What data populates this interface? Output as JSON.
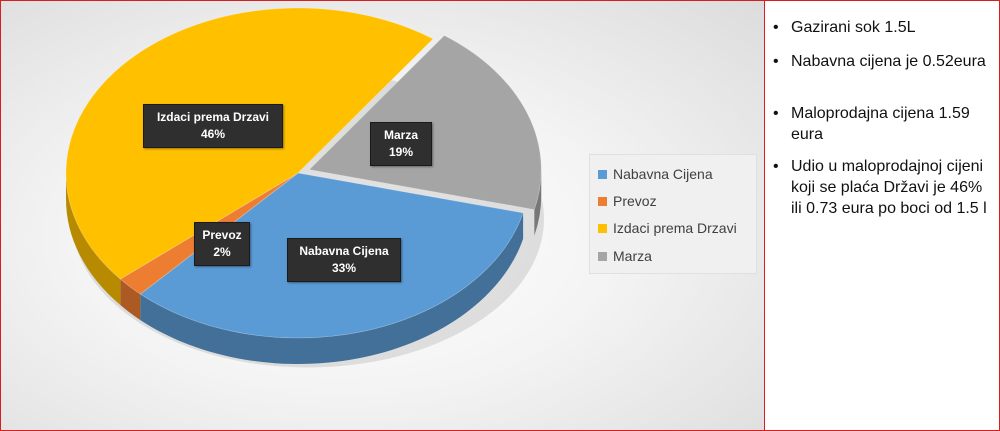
{
  "chart_data": {
    "type": "pie",
    "title": "",
    "slices": [
      {
        "name": "Nabavna Cijena",
        "value": 33,
        "label": "Nabavna Cijena",
        "pct": "33%",
        "color": "#5b9bd5"
      },
      {
        "name": "Prevoz",
        "value": 2,
        "label": "Prevoz",
        "pct": "2%",
        "color": "#ed7d31"
      },
      {
        "name": "Izdaci prema Drzavi",
        "value": 46,
        "label": "Izdaci  prema Drzavi",
        "pct": "46%",
        "color": "#ffc000"
      },
      {
        "name": "Marza",
        "value": 19,
        "label": "Marza",
        "pct": "19%",
        "color": "#a5a5a5"
      }
    ],
    "legend_position": "right",
    "style": "3d-exploded-pie"
  },
  "legend": {
    "items": [
      {
        "label": "Nabavna Cijena",
        "color": "#5b9bd5"
      },
      {
        "label": "Prevoz",
        "color": "#ed7d31"
      },
      {
        "label": "Izdaci prema Drzavi",
        "color": "#ffc000"
      },
      {
        "label": "Marza",
        "color": "#a5a5a5"
      }
    ]
  },
  "notes": [
    "Gazirani sok 1.5L",
    "Nabavna cijena je 0.52eura",
    "Maloprodajna cijena 1.59 eura",
    "Udio u maloprodajnoj cijeni koji se plaća Državi je 46% ili 0.73 eura po boci od 1.5 l"
  ],
  "bullet": "•"
}
